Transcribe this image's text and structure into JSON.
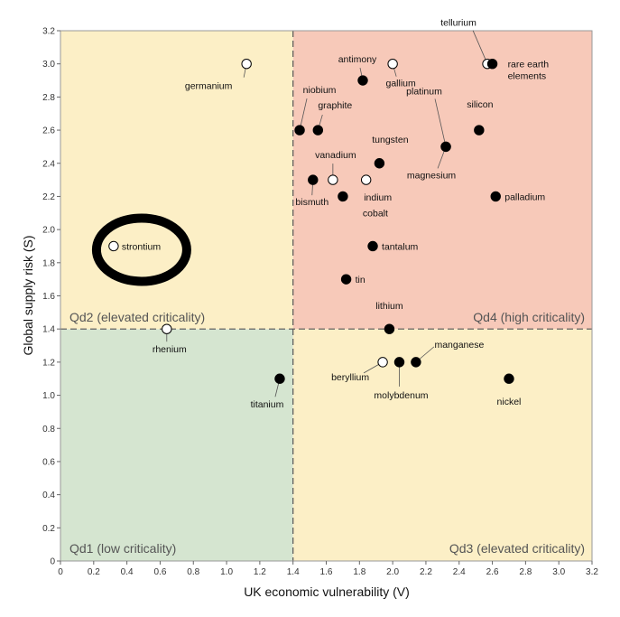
{
  "chart_data": {
    "type": "scatter",
    "xlabel": "UK economic vulnerability (V)",
    "ylabel": "Global supply risk (S)",
    "xlim": [
      0,
      3.2
    ],
    "ylim": [
      0,
      3.2
    ],
    "x_ticks": [
      "0",
      "0.2",
      "0.4",
      "0.6",
      "0.8",
      "1.0",
      "1.2",
      "1.4",
      "1.6",
      "1.8",
      "2.0",
      "2.2",
      "2.4",
      "2.6",
      "2.8",
      "3.0",
      "3.2"
    ],
    "y_ticks": [
      "0",
      "0.2",
      "0.4",
      "0.6",
      "0.8",
      "1.0",
      "1.2",
      "1.4",
      "1.6",
      "1.8",
      "2.0",
      "2.2",
      "2.4",
      "2.6",
      "2.8",
      "3.0",
      "3.2"
    ],
    "grid": false,
    "thresholds": {
      "x": 1.4,
      "y": 1.4
    },
    "quadrants": [
      {
        "label": "Qd1 (low criticality)",
        "color": "#d5e5d0"
      },
      {
        "label": "Qd2 (elevated criticality)",
        "color": "#fcefc6"
      },
      {
        "label": "Qd3 (elevated criticality)",
        "color": "#fcefc6"
      },
      {
        "label": "Qd4 (high criticality)",
        "color": "#f7c9b9"
      }
    ],
    "points": [
      {
        "name": "germanium",
        "x": 1.12,
        "y": 3.0,
        "filled": false
      },
      {
        "name": "strontium",
        "x": 0.32,
        "y": 1.9,
        "filled": false,
        "highlight": true
      },
      {
        "name": "rhenium",
        "x": 0.64,
        "y": 1.4,
        "filled": false
      },
      {
        "name": "titanium",
        "x": 1.32,
        "y": 1.1,
        "filled": true
      },
      {
        "name": "antimony",
        "x": 1.82,
        "y": 2.9,
        "filled": true
      },
      {
        "name": "gallium",
        "x": 2.0,
        "y": 3.0,
        "filled": false
      },
      {
        "name": "tellurium",
        "x": 2.57,
        "y": 3.0,
        "filled": false
      },
      {
        "name": "rare earth elements",
        "x": 2.6,
        "y": 3.0,
        "filled": true
      },
      {
        "name": "niobium",
        "x": 1.44,
        "y": 2.6,
        "filled": true
      },
      {
        "name": "graphite",
        "x": 1.55,
        "y": 2.6,
        "filled": true
      },
      {
        "name": "platinum",
        "x": 2.32,
        "y": 2.5,
        "filled": true
      },
      {
        "name": "silicon",
        "x": 2.52,
        "y": 2.6,
        "filled": true
      },
      {
        "name": "tungsten",
        "x": 1.92,
        "y": 2.4,
        "filled": true
      },
      {
        "name": "magnesium",
        "x": 2.32,
        "y": 2.5,
        "filled": true
      },
      {
        "name": "vanadium",
        "x": 1.64,
        "y": 2.3,
        "filled": false
      },
      {
        "name": "indium",
        "x": 1.84,
        "y": 2.3,
        "filled": false
      },
      {
        "name": "bismuth",
        "x": 1.52,
        "y": 2.3,
        "filled": true
      },
      {
        "name": "cobalt",
        "x": 1.7,
        "y": 2.2,
        "filled": true
      },
      {
        "name": "palladium",
        "x": 2.62,
        "y": 2.2,
        "filled": true
      },
      {
        "name": "tantalum",
        "x": 1.88,
        "y": 1.9,
        "filled": true
      },
      {
        "name": "tin",
        "x": 1.72,
        "y": 1.7,
        "filled": true
      },
      {
        "name": "lithium",
        "x": 1.98,
        "y": 1.4,
        "filled": true
      },
      {
        "name": "beryllium",
        "x": 1.94,
        "y": 1.2,
        "filled": false
      },
      {
        "name": "molybdenum",
        "x": 2.04,
        "y": 1.2,
        "filled": true
      },
      {
        "name": "manganese",
        "x": 2.14,
        "y": 1.2,
        "filled": true
      },
      {
        "name": "nickel",
        "x": 2.7,
        "y": 1.1,
        "filled": true
      }
    ]
  }
}
